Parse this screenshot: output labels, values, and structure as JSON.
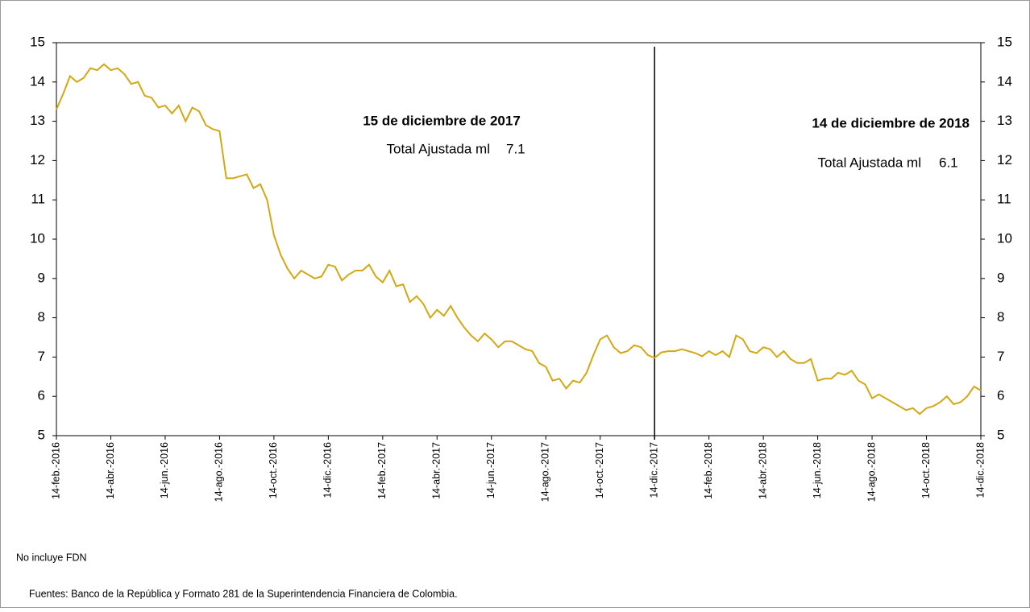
{
  "chart_data": {
    "type": "line",
    "categories": [
      "14-feb.-2016",
      null,
      null,
      null,
      null,
      null,
      null,
      null,
      "14-abr.-2016",
      null,
      null,
      null,
      null,
      null,
      null,
      null,
      "14-jun.-2016",
      null,
      null,
      null,
      null,
      null,
      null,
      null,
      "14-ago.-2016",
      null,
      null,
      null,
      null,
      null,
      null,
      null,
      "14-oct.-2016",
      null,
      null,
      null,
      null,
      null,
      null,
      null,
      "14-dic.-2016",
      null,
      null,
      null,
      null,
      null,
      null,
      null,
      "14-feb.-2017",
      null,
      null,
      null,
      null,
      null,
      null,
      null,
      "14-abr.-2017",
      null,
      null,
      null,
      null,
      null,
      null,
      null,
      "14-jun.-2017",
      null,
      null,
      null,
      null,
      null,
      null,
      null,
      "14-ago.-2017",
      null,
      null,
      null,
      null,
      null,
      null,
      null,
      "14-oct.-2017",
      null,
      null,
      null,
      null,
      null,
      null,
      null,
      "14-dic.-2017",
      null,
      null,
      null,
      null,
      null,
      null,
      null,
      "14-feb.-2018",
      null,
      null,
      null,
      null,
      null,
      null,
      null,
      "14-abr.-2018",
      null,
      null,
      null,
      null,
      null,
      null,
      null,
      "14-jun.-2018",
      null,
      null,
      null,
      null,
      null,
      null,
      null,
      "14-ago.-2018",
      null,
      null,
      null,
      null,
      null,
      null,
      null,
      "14-oct.-2018",
      null,
      null,
      null,
      null,
      null,
      null,
      null,
      "14-dic.-2018"
    ],
    "series": [
      {
        "color": "#d4a813",
        "values": [
          13.3,
          13.7,
          14.15,
          14.0,
          14.1,
          14.35,
          14.3,
          14.45,
          14.3,
          14.35,
          14.2,
          13.95,
          14.0,
          13.65,
          13.6,
          13.35,
          13.4,
          13.2,
          13.4,
          13.0,
          13.35,
          13.25,
          12.9,
          12.8,
          12.75,
          11.55,
          11.55,
          11.6,
          11.65,
          11.3,
          11.4,
          11.0,
          10.1,
          9.6,
          9.25,
          9.0,
          9.2,
          9.1,
          9.0,
          9.05,
          9.35,
          9.3,
          8.95,
          9.1,
          9.2,
          9.2,
          9.35,
          9.05,
          8.9,
          9.2,
          8.8,
          8.85,
          8.4,
          8.55,
          8.35,
          8.0,
          8.2,
          8.05,
          8.3,
          8.0,
          7.75,
          7.55,
          7.4,
          7.6,
          7.45,
          7.25,
          7.4,
          7.4,
          7.3,
          7.2,
          7.15,
          6.85,
          6.75,
          6.4,
          6.45,
          6.2,
          6.4,
          6.35,
          6.6,
          7.05,
          7.45,
          7.55,
          7.25,
          7.1,
          7.15,
          7.3,
          7.25,
          7.05,
          6.98,
          7.12,
          7.15,
          7.15,
          7.2,
          7.15,
          7.1,
          7.02,
          7.15,
          7.05,
          7.15,
          7.0,
          7.55,
          7.45,
          7.15,
          7.1,
          7.25,
          7.2,
          7.0,
          7.15,
          6.95,
          6.85,
          6.85,
          6.95,
          6.4,
          6.45,
          6.45,
          6.6,
          6.55,
          6.65,
          6.4,
          6.3,
          5.95,
          6.05,
          5.95,
          5.85,
          5.75,
          5.65,
          5.7,
          5.55,
          5.7,
          5.75,
          5.85,
          6.0,
          5.8,
          5.85,
          6.0,
          6.25,
          6.15
        ]
      }
    ],
    "ylim": [
      5,
      15
    ],
    "yticks": [
      5,
      6,
      7,
      8,
      9,
      10,
      11,
      12,
      13,
      14,
      15
    ],
    "y2lim": [
      5,
      15
    ],
    "y2ticks": [
      5,
      6,
      7,
      8,
      9,
      10,
      11,
      12,
      13,
      14,
      15
    ],
    "vline": "14-dic.-2017",
    "annotations": [
      {
        "title": "15 de diciembre de 2017",
        "label": "Total Ajustada ml",
        "value": 7.1
      },
      {
        "title": "14 de diciembre de 2018",
        "label": "Total Ajustada ml",
        "value": 6.1
      }
    ],
    "notes": [
      "No incluye FDN",
      "Fuentes: Banco de la República y Formato 281 de la Superintendencia Financiera de Colombia."
    ]
  }
}
